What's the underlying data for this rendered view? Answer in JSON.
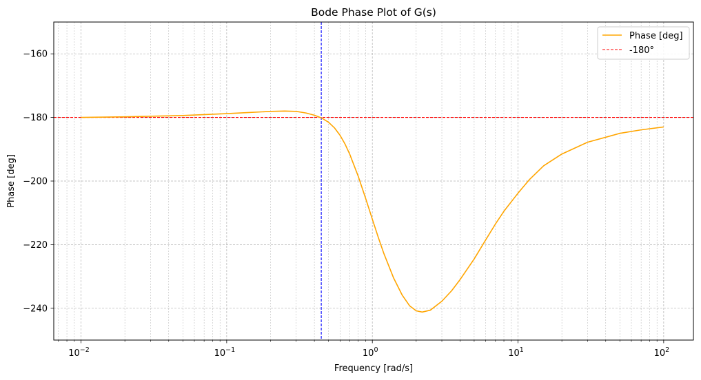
{
  "chart_data": {
    "type": "line",
    "title": "Bode Phase Plot of G(s)",
    "xlabel": "Frequency [rad/s]",
    "ylabel": "Phase [deg]",
    "xscale": "log",
    "xlim": [
      0.0065,
      160
    ],
    "ylim": [
      -250,
      -150
    ],
    "yticks": [
      -160,
      -180,
      -200,
      -220,
      -240
    ],
    "xticks": [
      {
        "value": 0.01,
        "base": "10",
        "exp": "−2"
      },
      {
        "value": 0.1,
        "base": "10",
        "exp": "−1"
      },
      {
        "value": 1,
        "base": "10",
        "exp": "0"
      },
      {
        "value": 10,
        "base": "10",
        "exp": "1"
      },
      {
        "value": 100,
        "base": "10",
        "exp": "2"
      }
    ],
    "ytick_labels": [
      "−160",
      "−180",
      "−200",
      "−220",
      "−240"
    ],
    "grid": true,
    "legend_position": "top-right",
    "series": [
      {
        "name": "Phase [deg]",
        "color": "#FFA500",
        "x": [
          0.01,
          0.02,
          0.05,
          0.1,
          0.15,
          0.2,
          0.25,
          0.3,
          0.35,
          0.4,
          0.45,
          0.5,
          0.55,
          0.6,
          0.65,
          0.7,
          0.8,
          0.9,
          1.0,
          1.1,
          1.2,
          1.4,
          1.6,
          1.8,
          2.0,
          2.2,
          2.5,
          3.0,
          3.5,
          4.0,
          5.0,
          6.0,
          7.0,
          8.0,
          10,
          12,
          15,
          20,
          30,
          50,
          70,
          100
        ],
        "y": [
          -180.0,
          -179.8,
          -179.4,
          -178.8,
          -178.4,
          -178.1,
          -178.0,
          -178.1,
          -178.6,
          -179.3,
          -180.2,
          -181.5,
          -183.3,
          -185.6,
          -188.4,
          -191.6,
          -198.5,
          -205.5,
          -212.0,
          -217.8,
          -222.8,
          -230.5,
          -235.8,
          -239.2,
          -240.8,
          -241.2,
          -240.6,
          -237.8,
          -234.5,
          -231.0,
          -224.5,
          -218.5,
          -213.5,
          -209.5,
          -203.8,
          -199.5,
          -195.2,
          -191.5,
          -187.8,
          -185.0,
          -183.9,
          -183.0
        ]
      }
    ],
    "reference_lines": [
      {
        "name": "-180°",
        "orientation": "horizontal",
        "value": -180,
        "color": "#FF0000",
        "style": "dashed"
      },
      {
        "orientation": "vertical",
        "value": 0.446,
        "color": "#0000FF",
        "style": "dashed"
      }
    ]
  }
}
